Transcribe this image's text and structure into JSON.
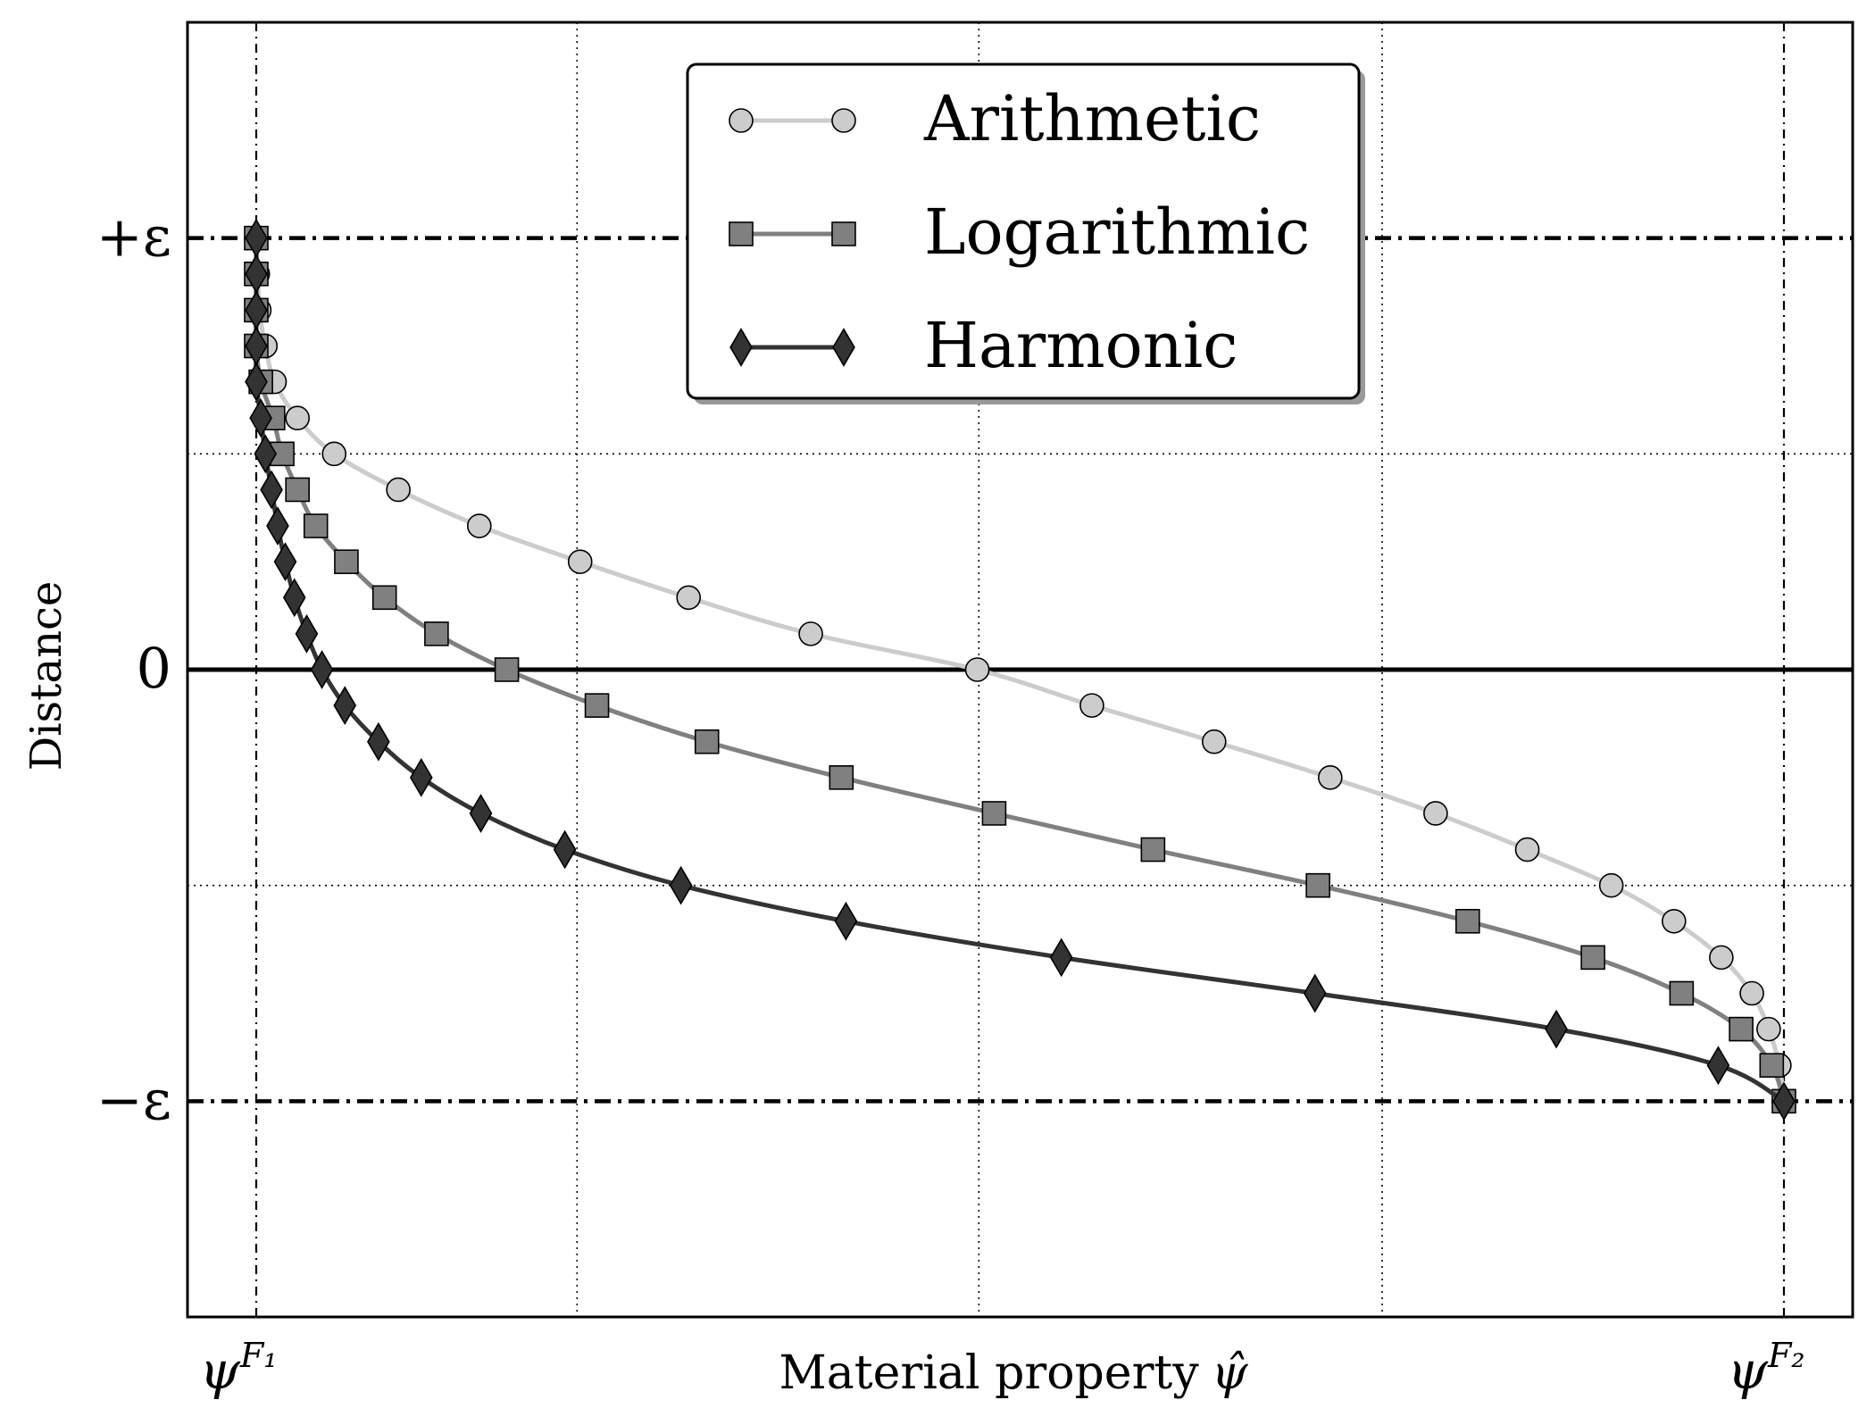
{
  "chart_data": {
    "type": "line",
    "title": "",
    "xlabel": "Material property",
    "xlabel_symbol": "ψ̂",
    "ylabel": "Distance",
    "xlim": [
      -0.045,
      1.045
    ],
    "ylim": [
      -1.5,
      1.5
    ],
    "x_ticks": [
      {
        "value": 0,
        "label": "ψ",
        "sup": "F₁"
      },
      {
        "value": 1,
        "label": "ψ",
        "sup": "F₂"
      }
    ],
    "y_ticks": [
      {
        "value": 1,
        "label": "+ε"
      },
      {
        "value": 0,
        "label": "0"
      },
      {
        "value": -1,
        "label": "−ε"
      }
    ],
    "x_gridlines": [
      0,
      0.21,
      0.473,
      0.737,
      1
    ],
    "y_gridlines": [
      1,
      0.5,
      0,
      -0.5,
      -1
    ],
    "grid": true,
    "legend_position": "top-center",
    "colors": {
      "arithmetic": "#cccccc",
      "logarithmic": "#808080",
      "harmonic": "#333333"
    },
    "series": [
      {
        "name": "Arithmetic",
        "marker": "circle",
        "points": [
          [
            0,
            1.0
          ],
          [
            0.001,
            0.917
          ],
          [
            0.002,
            0.833
          ],
          [
            0.006,
            0.75
          ],
          [
            0.012,
            0.667
          ],
          [
            0.027,
            0.583
          ],
          [
            0.051,
            0.5
          ],
          [
            0.093,
            0.417
          ],
          [
            0.146,
            0.333
          ],
          [
            0.212,
            0.25
          ],
          [
            0.283,
            0.167
          ],
          [
            0.363,
            0.083
          ],
          [
            0.472,
            0.0
          ],
          [
            0.547,
            -0.083
          ],
          [
            0.627,
            -0.167
          ],
          [
            0.703,
            -0.25
          ],
          [
            0.772,
            -0.333
          ],
          [
            0.832,
            -0.417
          ],
          [
            0.887,
            -0.5
          ],
          [
            0.928,
            -0.583
          ],
          [
            0.959,
            -0.667
          ],
          [
            0.979,
            -0.75
          ],
          [
            0.99,
            -0.833
          ],
          [
            0.997,
            -0.917
          ],
          [
            1.0,
            -1.0
          ]
        ]
      },
      {
        "name": "Logarithmic",
        "marker": "square",
        "points": [
          [
            0,
            1.0
          ],
          [
            0,
            0.917
          ],
          [
            0,
            0.833
          ],
          [
            0,
            0.75
          ],
          [
            0.003,
            0.667
          ],
          [
            0.011,
            0.583
          ],
          [
            0.017,
            0.5
          ],
          [
            0.027,
            0.417
          ],
          [
            0.039,
            0.333
          ],
          [
            0.059,
            0.25
          ],
          [
            0.084,
            0.167
          ],
          [
            0.118,
            0.083
          ],
          [
            0.164,
            0.0
          ],
          [
            0.223,
            -0.083
          ],
          [
            0.295,
            -0.167
          ],
          [
            0.383,
            -0.25
          ],
          [
            0.483,
            -0.333
          ],
          [
            0.587,
            -0.417
          ],
          [
            0.695,
            -0.5
          ],
          [
            0.793,
            -0.583
          ],
          [
            0.875,
            -0.667
          ],
          [
            0.933,
            -0.75
          ],
          [
            0.972,
            -0.833
          ],
          [
            0.992,
            -0.917
          ],
          [
            1.0,
            -1.0
          ]
        ]
      },
      {
        "name": "Harmonic",
        "marker": "diamond",
        "points": [
          [
            0,
            1.0
          ],
          [
            0,
            0.917
          ],
          [
            0,
            0.833
          ],
          [
            0,
            0.75
          ],
          [
            0,
            0.667
          ],
          [
            0.003,
            0.583
          ],
          [
            0.006,
            0.5
          ],
          [
            0.01,
            0.417
          ],
          [
            0.014,
            0.333
          ],
          [
            0.019,
            0.25
          ],
          [
            0.025,
            0.167
          ],
          [
            0.033,
            0.083
          ],
          [
            0.043,
            0.0
          ],
          [
            0.058,
            -0.083
          ],
          [
            0.08,
            -0.167
          ],
          [
            0.108,
            -0.25
          ],
          [
            0.147,
            -0.333
          ],
          [
            0.202,
            -0.417
          ],
          [
            0.278,
            -0.5
          ],
          [
            0.386,
            -0.583
          ],
          [
            0.527,
            -0.667
          ],
          [
            0.693,
            -0.75
          ],
          [
            0.851,
            -0.833
          ],
          [
            0.957,
            -0.917
          ],
          [
            1.0,
            -1.0
          ]
        ]
      }
    ]
  }
}
